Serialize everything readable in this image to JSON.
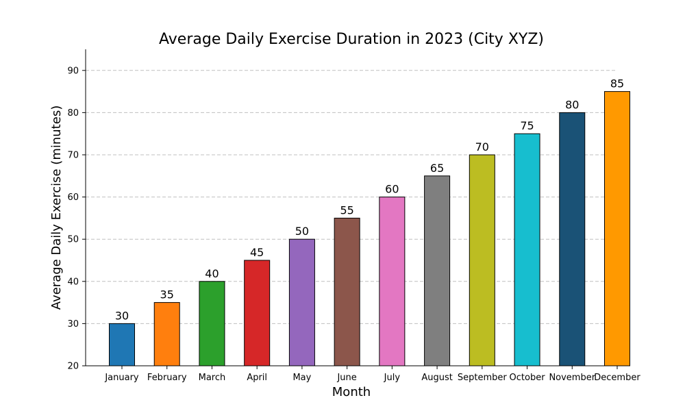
{
  "chart_data": {
    "type": "bar",
    "title": "Average Daily Exercise Duration in 2023 (City XYZ)",
    "xlabel": "Month",
    "ylabel": "Average Daily Exercise (minutes)",
    "ylim": [
      20,
      95
    ],
    "yticks": [
      20,
      30,
      40,
      50,
      60,
      70,
      80,
      90
    ],
    "grid": "y-dashed",
    "categories": [
      "January",
      "February",
      "March",
      "April",
      "May",
      "June",
      "July",
      "August",
      "September",
      "October",
      "November",
      "December"
    ],
    "values": [
      30,
      35,
      40,
      45,
      50,
      55,
      60,
      65,
      70,
      75,
      80,
      85
    ],
    "colors": [
      "#1f77b4",
      "#ff7f0e",
      "#2ca02c",
      "#d62728",
      "#9467bd",
      "#8c564b",
      "#e377c2",
      "#7f7f7f",
      "#bcbd22",
      "#17becf",
      "#1a5276",
      "#ff9900"
    ]
  }
}
